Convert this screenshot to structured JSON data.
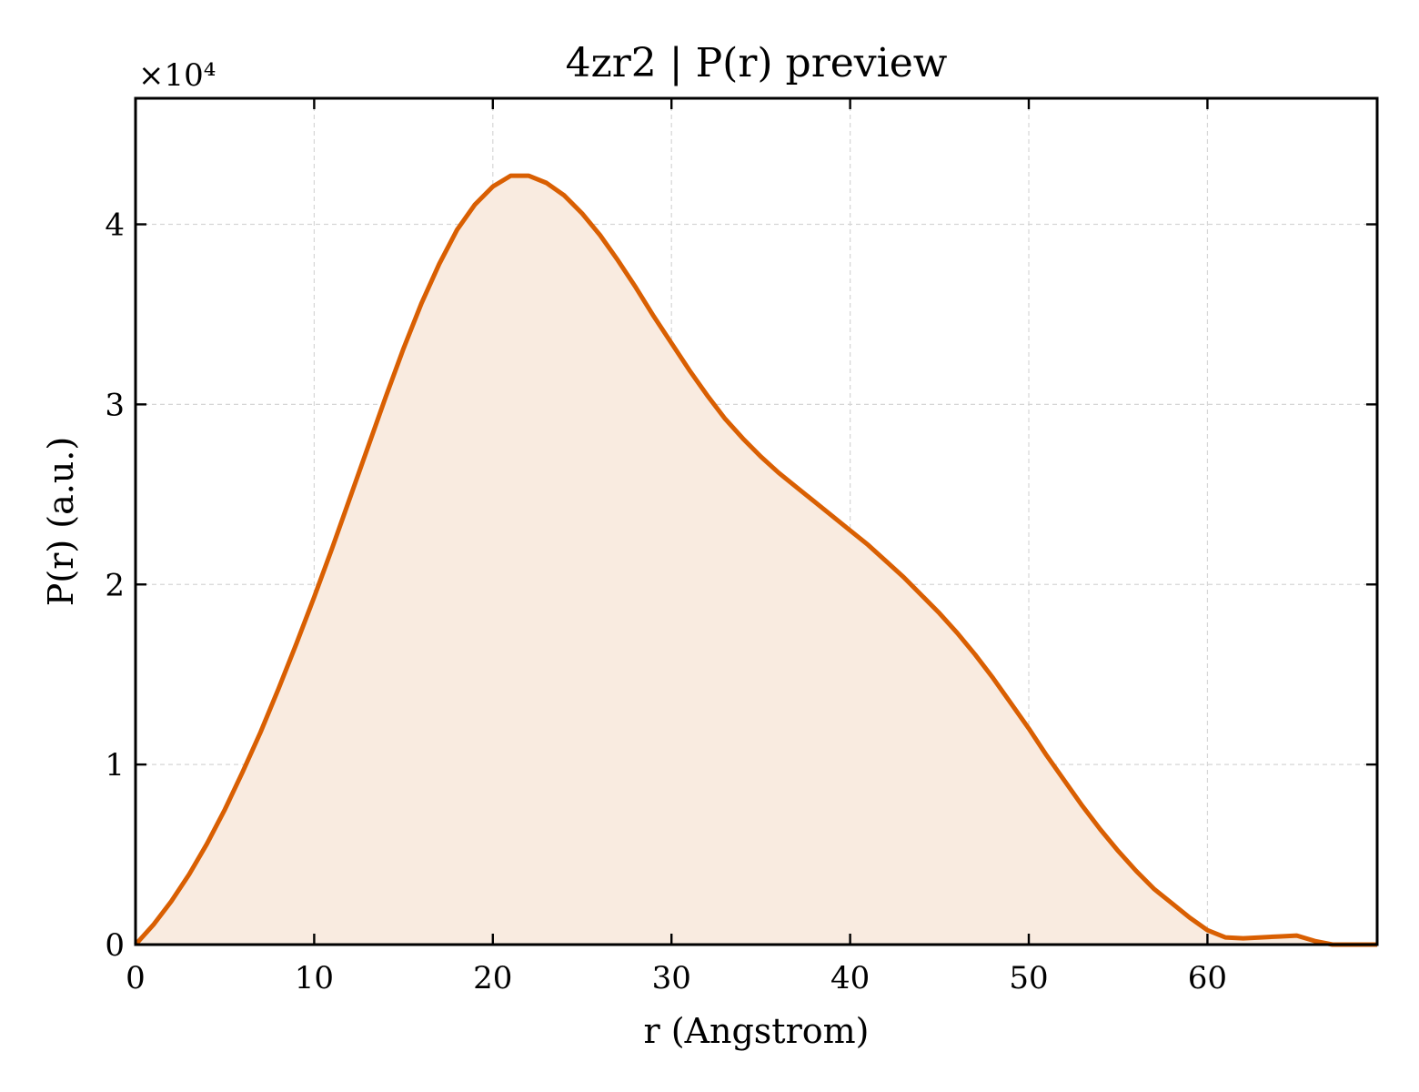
{
  "chart_data": {
    "type": "area",
    "title": "4zr2 | P(r) preview",
    "xlabel": "r (Angstrom)",
    "ylabel": "P(r) (a.u.)",
    "y_offset_label": "×10⁴",
    "xlim": [
      0,
      69.5
    ],
    "ylim": [
      0,
      4.7
    ],
    "x_ticks": [
      0,
      10,
      20,
      30,
      40,
      50,
      60
    ],
    "x_tick_labels": [
      "0",
      "10",
      "20",
      "30",
      "40",
      "50",
      "60"
    ],
    "y_ticks": [
      0,
      1,
      2,
      3,
      4
    ],
    "y_tick_labels": [
      "0",
      "1",
      "2",
      "3",
      "4"
    ],
    "grid": true,
    "line_color": "#d95f02",
    "fill_color": "#f9ebe0",
    "series": [
      {
        "x": [
          0,
          1,
          2,
          3,
          4,
          5,
          6,
          7,
          8,
          9,
          10,
          11,
          12,
          13,
          14,
          15,
          16,
          17,
          18,
          19,
          20,
          21,
          22,
          23,
          24,
          25,
          26,
          27,
          28,
          29,
          30,
          31,
          32,
          33,
          34,
          35,
          36,
          37,
          38,
          39,
          40,
          41,
          42,
          43,
          44,
          45,
          46,
          47,
          48,
          49,
          50,
          51,
          52,
          53,
          54,
          55,
          56,
          57,
          58,
          59,
          60,
          61,
          62,
          63,
          64,
          65,
          66,
          67,
          68,
          69,
          69.5
        ],
        "values": [
          0,
          0.11,
          0.24,
          0.39,
          0.56,
          0.75,
          0.96,
          1.18,
          1.42,
          1.67,
          1.93,
          2.2,
          2.48,
          2.76,
          3.04,
          3.31,
          3.56,
          3.78,
          3.97,
          4.11,
          4.21,
          4.27,
          4.27,
          4.23,
          4.16,
          4.06,
          3.94,
          3.8,
          3.65,
          3.49,
          3.34,
          3.19,
          3.05,
          2.92,
          2.81,
          2.71,
          2.62,
          2.54,
          2.46,
          2.38,
          2.3,
          2.22,
          2.13,
          2.04,
          1.94,
          1.84,
          1.73,
          1.61,
          1.48,
          1.34,
          1.2,
          1.05,
          0.91,
          0.77,
          0.64,
          0.52,
          0.41,
          0.31,
          0.23,
          0.15,
          0.08,
          0.04,
          0.035,
          0.04,
          0.045,
          0.05,
          0.02,
          0.0,
          0.0,
          0.0,
          0.0
        ]
      }
    ]
  }
}
